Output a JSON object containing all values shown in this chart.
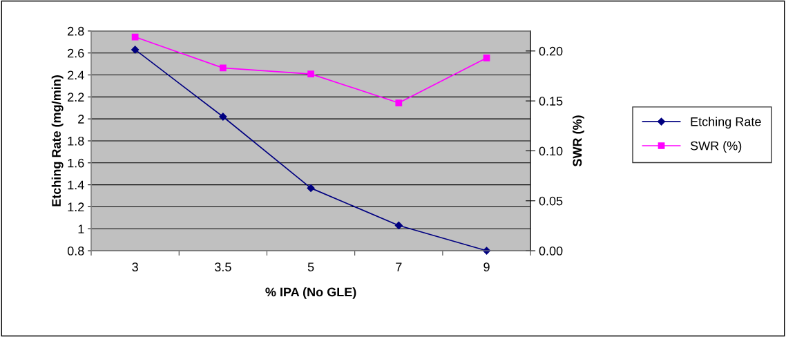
{
  "chart_data": {
    "type": "line",
    "xlabel": "% IPA (No GLE)",
    "ylabel": "Etching Rate (mg/min)",
    "y2label": "SWR (%)",
    "categories": [
      "3",
      "3.5",
      "5",
      "7",
      "9"
    ],
    "series": [
      {
        "name": "Etching Rate",
        "color": "#000080",
        "marker": "diamond",
        "values": [
          2.63,
          2.02,
          1.37,
          1.03,
          0.8
        ]
      },
      {
        "name": "SWR (%)",
        "color": "#ff00ff",
        "marker": "square",
        "axis": "y2",
        "values": [
          0.214,
          0.183,
          0.177,
          0.148,
          0.193
        ]
      }
    ],
    "ylim": [
      0.8,
      2.8
    ],
    "yticks": [
      0.8,
      1,
      1.2,
      1.4,
      1.6,
      1.8,
      2,
      2.2,
      2.4,
      2.6,
      2.8
    ],
    "y2lim": [
      0,
      0.22
    ],
    "y2ticks": [
      {
        "value": 0,
        "label": "0.00"
      },
      {
        "value": 0.05,
        "label": "0.05"
      },
      {
        "value": 0.1,
        "label": "0.10"
      },
      {
        "value": 0.15,
        "label": "0.15"
      },
      {
        "value": 0.2,
        "label": "0.20"
      }
    ],
    "grid": "y",
    "legend": "right"
  }
}
